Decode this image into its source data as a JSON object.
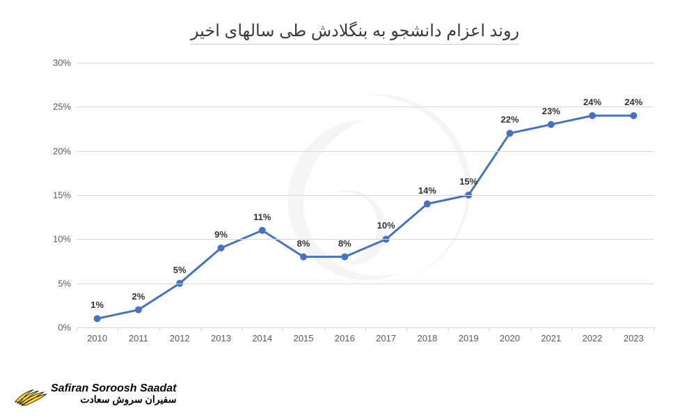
{
  "chart": {
    "type": "line",
    "title": "روند اعزام دانشجو به بنگلادش طی سالهای اخیر",
    "title_fontsize": 24,
    "title_color": "#3a3a3a",
    "categories": [
      "2010",
      "2011",
      "2012",
      "2013",
      "2014",
      "2015",
      "2016",
      "2017",
      "2018",
      "2019",
      "2020",
      "2021",
      "2022",
      "2023"
    ],
    "values": [
      1,
      2,
      5,
      9,
      11,
      8,
      8,
      10,
      14,
      15,
      22,
      23,
      24,
      24
    ],
    "value_labels": [
      "1%",
      "2%",
      "5%",
      "9%",
      "11%",
      "8%",
      "8%",
      "10%",
      "14%",
      "15%",
      "22%",
      "23%",
      "24%",
      "24%"
    ],
    "line_color": "#4472c4",
    "marker_color": "#4472c4",
    "line_width": 3,
    "marker_radius": 5,
    "ylim": [
      0,
      30
    ],
    "ytick_step": 5,
    "ytick_labels": [
      "0%",
      "5%",
      "10%",
      "15%",
      "20%",
      "25%",
      "30%"
    ],
    "grid_color": "#d9d9d9",
    "axis_label_color": "#595959",
    "axis_label_fontsize": 13,
    "data_label_fontsize": 13,
    "data_label_color": "#333333",
    "background_color": "#ffffff"
  },
  "brand": {
    "en": "Safiran Soroosh Saadat",
    "fa": "سفیران سروش سعادت",
    "logo_fill": "#ffd42a",
    "logo_stroke": "#000000"
  }
}
